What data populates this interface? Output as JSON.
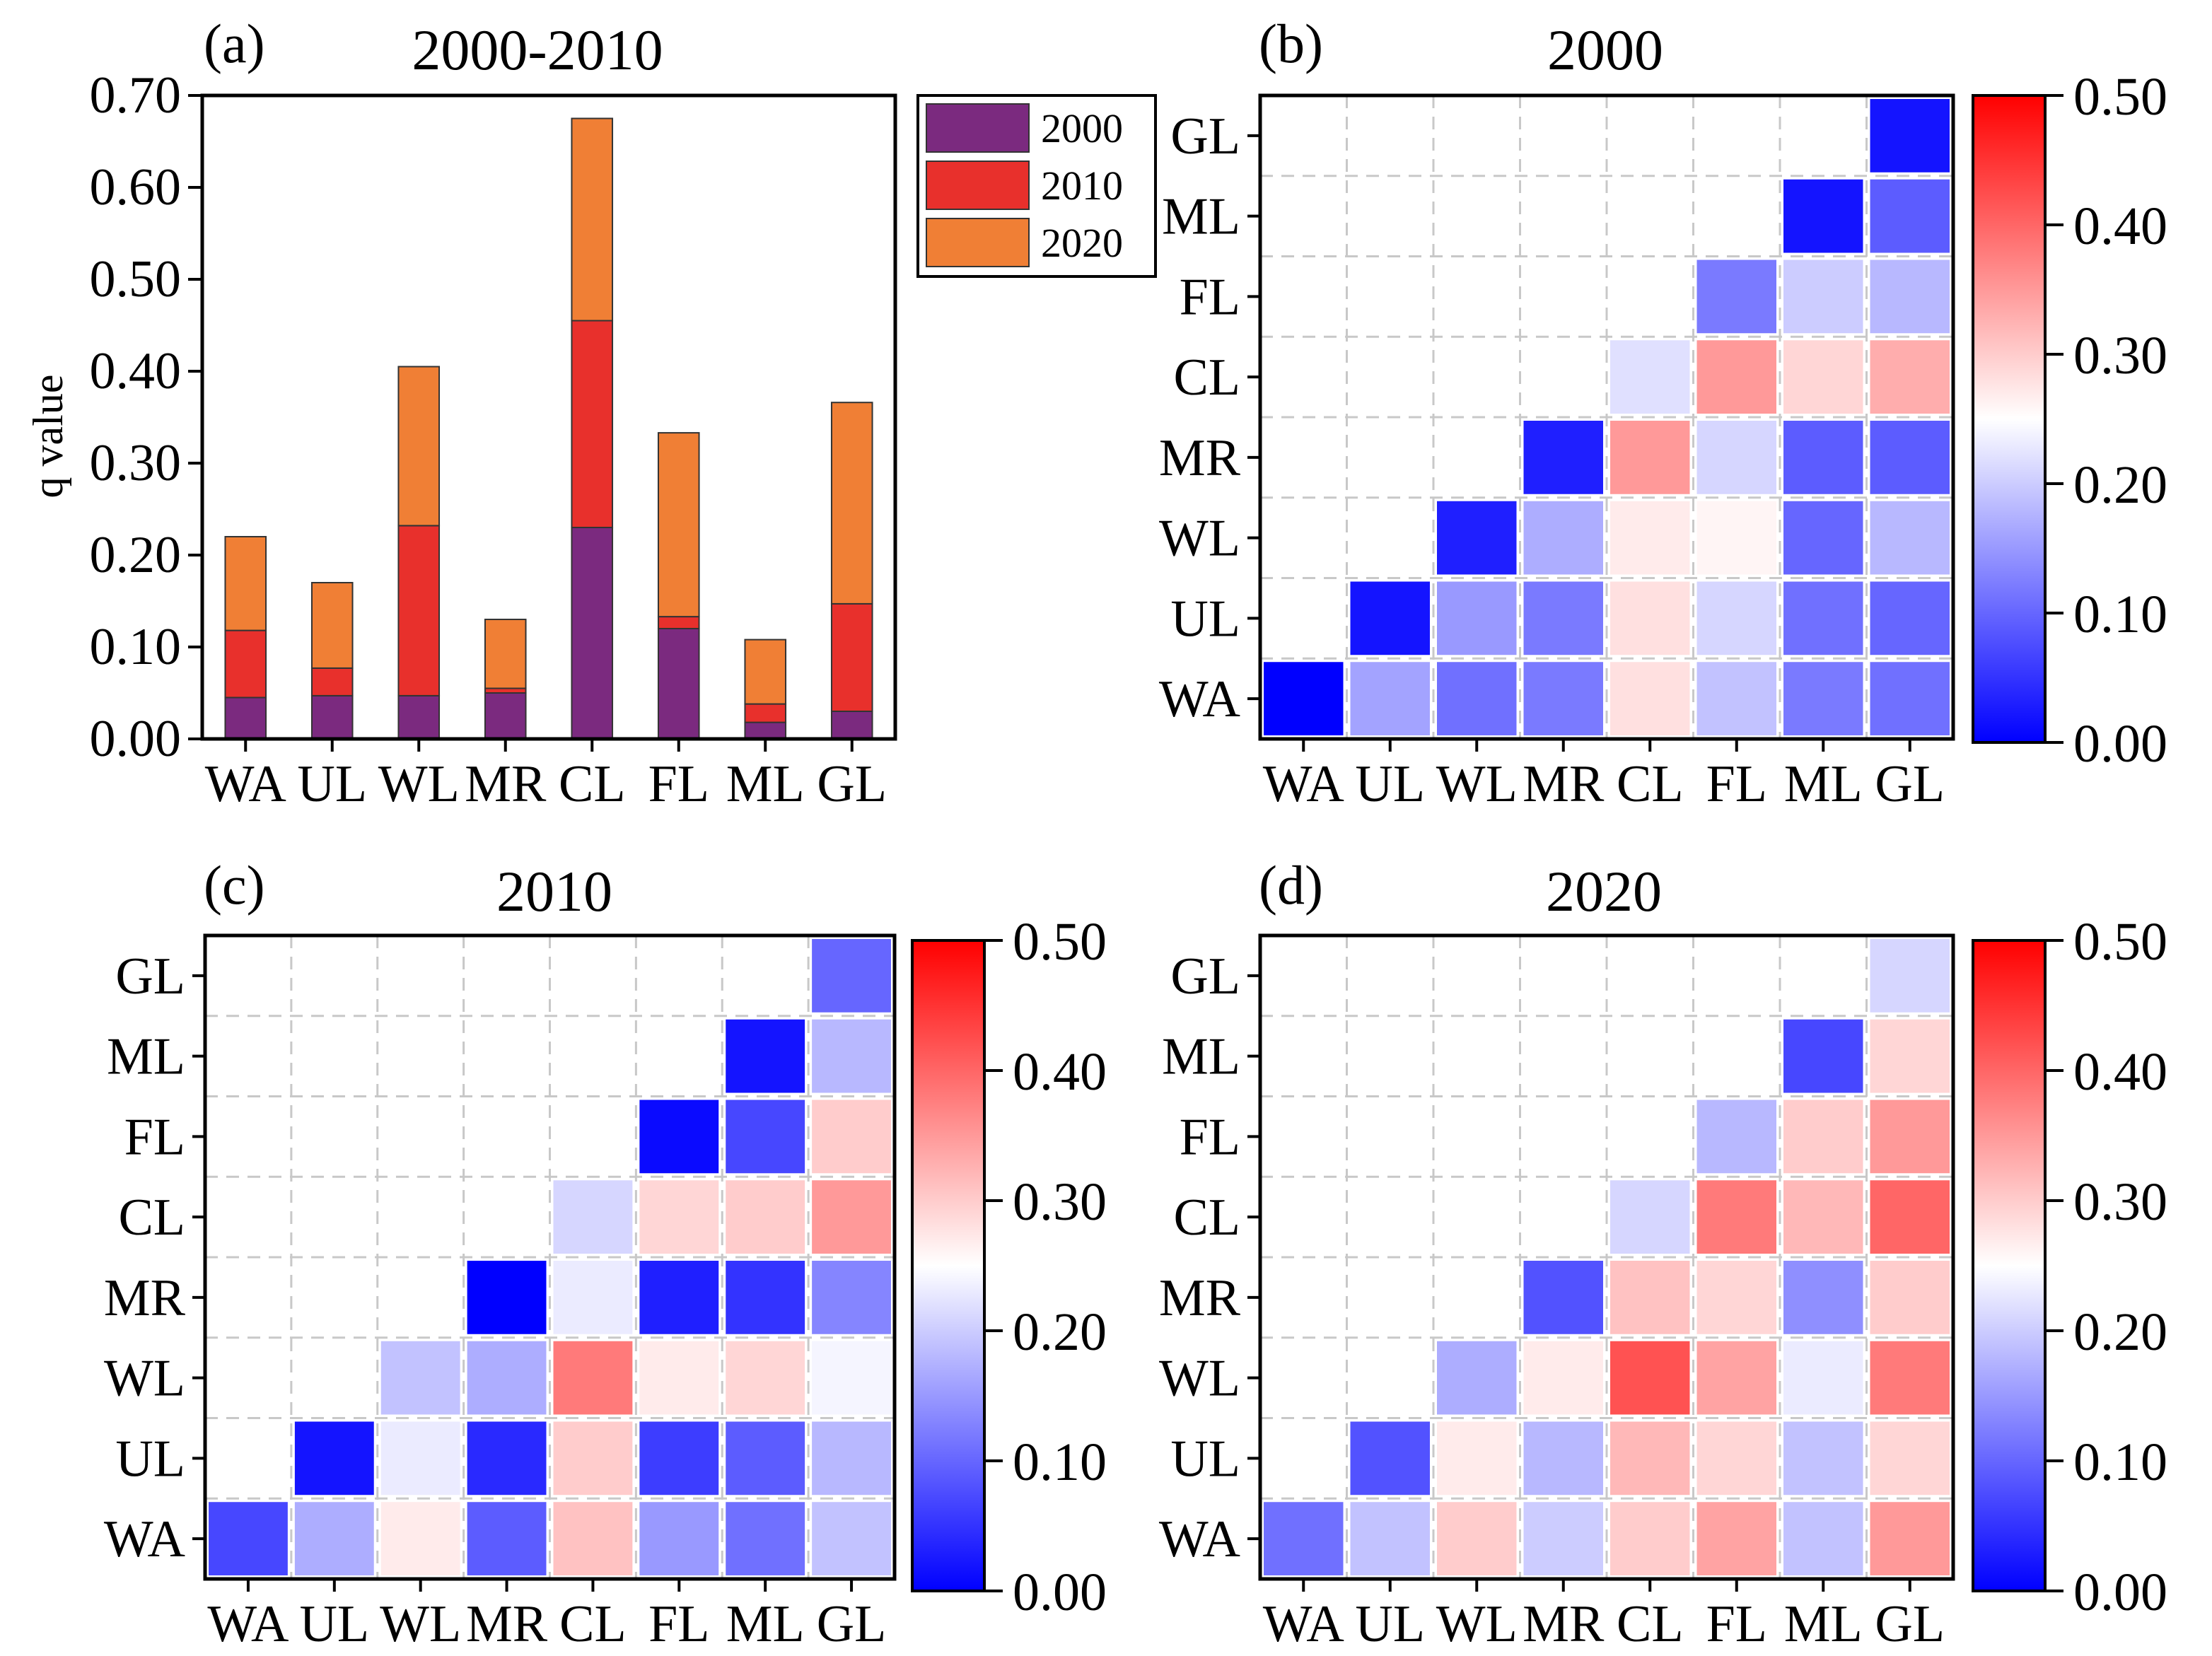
{
  "colors": {
    "y2000": "#7b2a7f",
    "y2010": "#e8302c",
    "y2020": "#f07f35",
    "cmap_low": "#0000ff",
    "cmap_mid": "#ffffff",
    "cmap_high": "#ff0000",
    "grid": "#c8c8c8"
  },
  "chart_data": [
    {
      "id": "a",
      "type": "bar",
      "stacked": true,
      "panel_label": "(a)",
      "title": "2000-2010",
      "xlabel": "",
      "ylabel": "q value",
      "ylim": [
        0,
        0.7
      ],
      "yticks": [
        "0.00",
        "0.10",
        "0.20",
        "0.30",
        "0.40",
        "0.50",
        "0.60",
        "0.70"
      ],
      "ytick_values": [
        0,
        0.1,
        0.2,
        0.3,
        0.4,
        0.5,
        0.6,
        0.7
      ],
      "categories": [
        "WA",
        "UL",
        "WL",
        "MR",
        "CL",
        "FL",
        "ML",
        "GL"
      ],
      "legend_position": "outside-top-right",
      "series": [
        {
          "name": "2000",
          "values": [
            0.045,
            0.047,
            0.047,
            0.05,
            0.23,
            0.12,
            0.018,
            0.03
          ]
        },
        {
          "name": "2010",
          "values": [
            0.073,
            0.03,
            0.185,
            0.005,
            0.225,
            0.013,
            0.02,
            0.117
          ]
        },
        {
          "name": "2020",
          "values": [
            0.102,
            0.093,
            0.173,
            0.075,
            0.22,
            0.2,
            0.07,
            0.219
          ]
        }
      ]
    },
    {
      "id": "b",
      "type": "heatmap",
      "panel_label": "(b)",
      "title": "2000",
      "x_categories": [
        "WA",
        "UL",
        "WL",
        "MR",
        "CL",
        "FL",
        "ML",
        "GL"
      ],
      "y_categories": [
        "WA",
        "UL",
        "WL",
        "MR",
        "CL",
        "FL",
        "ML",
        "GL"
      ],
      "colorbar_range": [
        0,
        0.5
      ],
      "colorbar_ticks": [
        "0.00",
        "0.10",
        "0.20",
        "0.30",
        "0.40",
        "0.50"
      ],
      "values": [
        [
          0.0,
          0.16,
          0.11,
          0.12,
          0.28,
          0.19,
          0.12,
          0.11
        ],
        [
          null,
          0.02,
          0.15,
          0.12,
          0.28,
          0.21,
          0.11,
          0.1
        ],
        [
          null,
          null,
          0.03,
          0.17,
          0.27,
          0.26,
          0.1,
          0.18
        ],
        [
          null,
          null,
          null,
          0.03,
          0.35,
          0.21,
          0.09,
          0.09
        ],
        [
          null,
          null,
          null,
          null,
          0.22,
          0.35,
          0.29,
          0.33
        ],
        [
          null,
          null,
          null,
          null,
          null,
          0.12,
          0.2,
          0.18
        ],
        [
          null,
          null,
          null,
          null,
          null,
          null,
          0.02,
          0.09
        ],
        [
          null,
          null,
          null,
          null,
          null,
          null,
          null,
          0.02
        ]
      ]
    },
    {
      "id": "c",
      "type": "heatmap",
      "panel_label": "(c)",
      "title": "2010",
      "x_categories": [
        "WA",
        "UL",
        "WL",
        "MR",
        "CL",
        "FL",
        "ML",
        "GL"
      ],
      "y_categories": [
        "WA",
        "UL",
        "WL",
        "MR",
        "CL",
        "FL",
        "ML",
        "GL"
      ],
      "colorbar_range": [
        0,
        0.5
      ],
      "colorbar_ticks": [
        "0.00",
        "0.10",
        "0.20",
        "0.30",
        "0.40",
        "0.50"
      ],
      "values": [
        [
          0.07,
          0.17,
          0.27,
          0.09,
          0.31,
          0.15,
          0.11,
          0.19
        ],
        [
          null,
          0.02,
          0.23,
          0.04,
          0.3,
          0.06,
          0.09,
          0.18
        ],
        [
          null,
          null,
          0.19,
          0.17,
          0.38,
          0.27,
          0.29,
          0.24
        ],
        [
          null,
          null,
          null,
          0.0,
          0.23,
          0.03,
          0.05,
          0.13
        ],
        [
          null,
          null,
          null,
          null,
          0.21,
          0.29,
          0.3,
          0.35
        ],
        [
          null,
          null,
          null,
          null,
          null,
          0.01,
          0.07,
          0.3
        ],
        [
          null,
          null,
          null,
          null,
          null,
          null,
          0.02,
          0.18
        ],
        [
          null,
          null,
          null,
          null,
          null,
          null,
          null,
          0.1
        ]
      ]
    },
    {
      "id": "d",
      "type": "heatmap",
      "panel_label": "(d)",
      "title": "2020",
      "x_categories": [
        "WA",
        "UL",
        "WL",
        "MR",
        "CL",
        "FL",
        "ML",
        "GL"
      ],
      "y_categories": [
        "WA",
        "UL",
        "WL",
        "MR",
        "CL",
        "FL",
        "ML",
        "GL"
      ],
      "colorbar_range": [
        0,
        0.5
      ],
      "colorbar_ticks": [
        "0.00",
        "0.10",
        "0.20",
        "0.30",
        "0.40",
        "0.50"
      ],
      "values": [
        [
          0.11,
          0.19,
          0.3,
          0.2,
          0.3,
          0.34,
          0.19,
          0.35
        ],
        [
          null,
          0.08,
          0.27,
          0.18,
          0.32,
          0.29,
          0.19,
          0.29
        ],
        [
          null,
          null,
          0.17,
          0.27,
          0.42,
          0.34,
          0.23,
          0.38
        ],
        [
          null,
          null,
          null,
          0.08,
          0.31,
          0.29,
          0.14,
          0.3
        ],
        [
          null,
          null,
          null,
          null,
          0.21,
          0.38,
          0.32,
          0.4
        ],
        [
          null,
          null,
          null,
          null,
          null,
          0.18,
          0.3,
          0.35
        ],
        [
          null,
          null,
          null,
          null,
          null,
          null,
          0.07,
          0.29
        ],
        [
          null,
          null,
          null,
          null,
          null,
          null,
          null,
          0.21
        ]
      ]
    }
  ]
}
